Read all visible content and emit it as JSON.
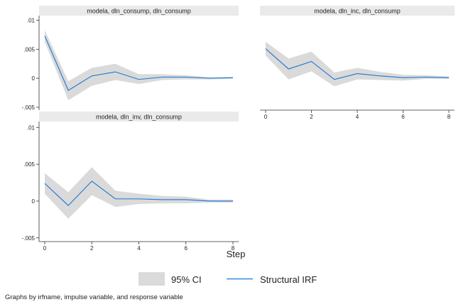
{
  "chart_data": {
    "type": "line",
    "note": "Graphs by irfname, impulse variable, and response variable",
    "xlabel": "Step",
    "ylim": [
      -0.0055,
      0.0108
    ],
    "y_ticks": [
      -0.005,
      0,
      0.005,
      0.01
    ],
    "y_tick_labels": [
      "-.005",
      "0",
      ".005",
      ".01"
    ],
    "x_ticks": [
      0,
      2,
      4,
      6,
      8
    ],
    "x_tick_labels": [
      "0",
      "2",
      "4",
      "6",
      "8"
    ],
    "colors": {
      "irf_line": "#1a76d2",
      "ci_band": "#dadada",
      "title_strip": "#eaeaea",
      "axis": "#333333"
    },
    "legend": [
      {
        "name": "95% CI",
        "kind": "area"
      },
      {
        "name": "Structural IRF",
        "kind": "line"
      }
    ],
    "panels": [
      {
        "title": "modela, dln_consump, dln_consump",
        "show_x_ticks": false,
        "x": [
          0,
          1,
          2,
          3,
          4,
          5,
          6,
          7,
          8
        ],
        "irf": [
          0.0073,
          -0.0021,
          0.0004,
          0.0011,
          -0.0002,
          0.0002,
          0.0002,
          0.0,
          0.0001
        ],
        "lower": [
          0.0063,
          -0.0038,
          -0.0013,
          -0.0003,
          -0.001,
          -0.0003,
          -0.0002,
          -0.0002,
          -0.0001
        ],
        "upper": [
          0.0083,
          -0.0005,
          0.0018,
          0.0025,
          0.0007,
          0.0007,
          0.0005,
          0.0002,
          0.0002
        ]
      },
      {
        "title": "modela, dln_inc, dln_consump",
        "show_x_ticks": true,
        "x": [
          0,
          1,
          2,
          3,
          4,
          5,
          6,
          7,
          8
        ],
        "irf": [
          0.0051,
          0.0016,
          0.0029,
          -0.0002,
          0.0008,
          0.0004,
          0.0001,
          0.0002,
          0.0001
        ],
        "lower": [
          0.0039,
          -0.0002,
          0.0012,
          -0.0014,
          -0.0002,
          -0.0003,
          -0.0004,
          -0.0001,
          -0.0001
        ],
        "upper": [
          0.0063,
          0.0034,
          0.0046,
          0.001,
          0.0018,
          0.0011,
          0.0006,
          0.0005,
          0.0003
        ]
      },
      {
        "title": "modela, dln_inv, dln_consump",
        "show_x_ticks": true,
        "x": [
          0,
          1,
          2,
          3,
          4,
          5,
          6,
          7,
          8
        ],
        "irf": [
          0.0024,
          -0.0006,
          0.0027,
          0.0003,
          0.0003,
          0.0002,
          0.0002,
          0.0,
          0.0
        ],
        "lower": [
          0.001,
          -0.0024,
          0.0008,
          -0.0008,
          -0.0004,
          -0.0003,
          -0.0003,
          -0.0002,
          -0.0002
        ],
        "upper": [
          0.0038,
          0.0012,
          0.0046,
          0.0014,
          0.001,
          0.0007,
          0.0006,
          0.0002,
          0.0002
        ]
      }
    ]
  }
}
